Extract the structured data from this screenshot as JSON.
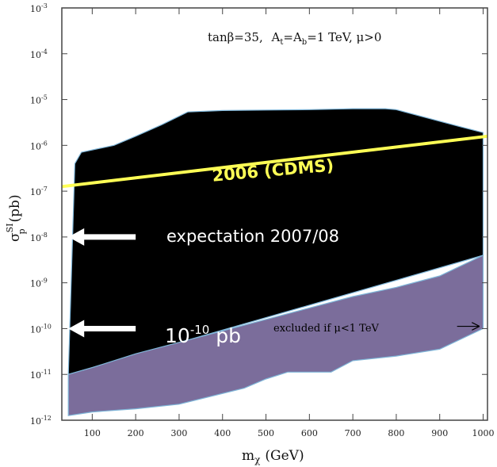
{
  "chart_data": {
    "type": "area",
    "title": "tanβ=35, At=Ab=1 TeV, μ>0",
    "title_parts": {
      "tan_beta": "tanβ=35,",
      "a_t": "A",
      "a_t_sub": "t",
      "eq": "=A",
      "a_b_sub": "b",
      "rest": "=1 TeV, μ>0"
    },
    "xlabel": {
      "main": "m",
      "sub": "χ",
      "unit": "(GeV)"
    },
    "ylabel": {
      "main": "σ",
      "sup": "SI",
      "sub": "p",
      "unit": "(pb)"
    },
    "xlim": [
      30,
      1010
    ],
    "ylim_exp": [
      -12,
      -3
    ],
    "log_y": true,
    "x_ticks": [
      100,
      200,
      300,
      400,
      500,
      600,
      700,
      800,
      900,
      1000
    ],
    "x_tick_labels": [
      "100",
      "200",
      "300",
      "400",
      "500",
      "600",
      "700",
      "800",
      "900",
      "1000"
    ],
    "y_ticks_exp": [
      -12,
      -11,
      -10,
      -9,
      -8,
      -7,
      -6,
      -5,
      -4,
      -3
    ],
    "y_tick_labels": [
      {
        "base": "10",
        "sup": "-12"
      },
      {
        "base": "10",
        "sup": "-11"
      },
      {
        "base": "10",
        "sup": "-10"
      },
      {
        "base": "10",
        "sup": "-9"
      },
      {
        "base": "10",
        "sup": "-8"
      },
      {
        "base": "10",
        "sup": "-7"
      },
      {
        "base": "10",
        "sup": "-6"
      },
      {
        "base": "10",
        "sup": "-5"
      },
      {
        "base": "10",
        "sup": "-4"
      },
      {
        "base": "10",
        "sup": "-3"
      }
    ],
    "series": [
      {
        "role": "allowed-region",
        "color": "#000000",
        "x": [
          45,
          60,
          75,
          150,
          200,
          260,
          320,
          400,
          500,
          600,
          700,
          775,
          800,
          950,
          1000,
          1000,
          1000
        ],
        "y_exp": [
          -11.0,
          -6.4,
          -6.15,
          -6.0,
          -5.8,
          -5.55,
          -5.27,
          -5.24,
          -5.23,
          -5.22,
          -5.2,
          -5.2,
          -5.22,
          -5.6,
          -5.72,
          -7.0,
          -8.4
        ]
      },
      {
        "role": "excluded-region",
        "color": "#7b6d9b",
        "x": [
          45,
          100,
          200,
          300,
          400,
          500,
          600,
          700,
          800,
          900,
          1000,
          1000,
          900,
          800,
          700,
          650,
          550,
          500,
          450,
          300,
          200,
          100,
          45
        ],
        "y_exp": [
          -11.0,
          -10.85,
          -10.55,
          -10.3,
          -10.05,
          -9.8,
          -9.55,
          -9.3,
          -9.1,
          -8.85,
          -8.4,
          -10.0,
          -10.45,
          -10.6,
          -10.7,
          -10.95,
          -10.95,
          -11.1,
          -11.3,
          -11.65,
          -11.75,
          -11.82,
          -11.9
        ]
      },
      {
        "role": "limit-line",
        "name": "2006 (CDMS)",
        "color": "#ffff55",
        "x": [
          30,
          1010
        ],
        "y_exp": [
          -6.9,
          -5.8
        ]
      }
    ],
    "annotations": {
      "cdms": "2006 (CDMS)",
      "expectation": "expectation 2007/08",
      "pb_base": "10",
      "pb_sup": "-10",
      "pb_unit": " pb",
      "excluded_text": "excluded if μ<1 TeV"
    },
    "arrows": [
      {
        "role": "expectation-arrow",
        "y_exp": -8,
        "x_from": 200,
        "x_to": 45
      },
      {
        "role": "pb-arrow",
        "y_exp": -10,
        "x_from": 200,
        "x_to": 45
      },
      {
        "role": "excluded-arrow",
        "y_exp": -9.95,
        "x_from": 940,
        "x_to": 990
      }
    ],
    "colors": {
      "allowed": "#000000",
      "excluded": "#7b6d9b",
      "boundary": "#7fb6d9",
      "cdms_line": "#ffff55",
      "arrow": "#ffffff"
    },
    "grid": false,
    "legend": "none"
  }
}
